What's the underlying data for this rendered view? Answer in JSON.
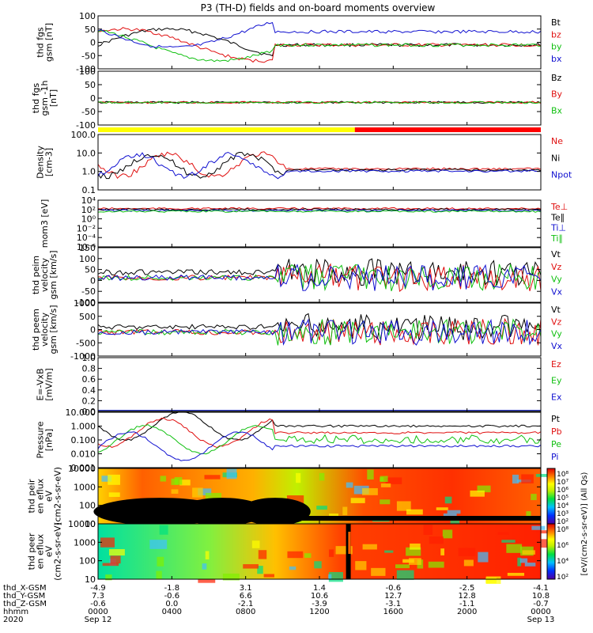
{
  "title": "P3 (TH-D) fields and on-board moments overview",
  "colors": {
    "black": "#000000",
    "red": "#e01010",
    "green": "#10c010",
    "blue": "#1010d0",
    "yellow": "#ffff00",
    "bar_red": "#ff0000"
  },
  "colorbar": {
    "label": "[eV/(cm2-s-sr-eV)] (All Qs)",
    "ticks_top": [
      "10⁸",
      "10⁷",
      "10⁶",
      "10⁵",
      "10⁴",
      "10³",
      "10²"
    ],
    "ticks_bottom": [
      "10⁸",
      "10⁶",
      "10⁴",
      "10²"
    ]
  },
  "footer": {
    "row_labels": [
      "thd_X-GSM",
      "thd_Y-GSM",
      "thd_Z-GSM",
      "hhmm",
      "2020"
    ],
    "columns": [
      {
        "x": "-4.9",
        "y": "7.3",
        "z": "-0.6",
        "t": "0000",
        "d": "Sep 12"
      },
      {
        "x": "-1.8",
        "y": "-0.6",
        "z": "0.0",
        "t": "0400",
        "d": ""
      },
      {
        "x": "3.1",
        "y": "6.6",
        "z": "-2.1",
        "t": "0800",
        "d": ""
      },
      {
        "x": "1.4",
        "y": "10.6",
        "z": "-3.9",
        "t": "1200",
        "d": ""
      },
      {
        "x": "-0.6",
        "y": "12.7",
        "z": "-3.1",
        "t": "1600",
        "d": ""
      },
      {
        "x": "-2.5",
        "y": "12.8",
        "z": "-1.1",
        "t": "2000",
        "d": ""
      },
      {
        "x": "-4.1",
        "y": "10.8",
        "z": "-0.7",
        "t": "0000",
        "d": "Sep 13"
      }
    ]
  },
  "chart_data": [
    {
      "type": "line",
      "ylabel": "thd fgs gsm [nT]",
      "ylim": [
        -100,
        100
      ],
      "yticks": [
        "100",
        "50",
        "0",
        "-50",
        "-100"
      ],
      "legend": [
        {
          "name": "Bt",
          "color": "black"
        },
        {
          "name": "bz",
          "color": "red"
        },
        {
          "name": "by",
          "color": "green"
        },
        {
          "name": "bx",
          "color": "blue"
        }
      ]
    },
    {
      "type": "line",
      "ylabel": "thd fgs gsm -1h [nT]",
      "ylim": [
        -120,
        100
      ],
      "yticks": [
        "100",
        "50",
        "0",
        "-50",
        "-100"
      ],
      "legend": [
        {
          "name": "Bz",
          "color": "black"
        },
        {
          "name": "By",
          "color": "red"
        },
        {
          "name": "Bx",
          "color": "green"
        }
      ]
    },
    {
      "type": "line",
      "ylabel": "Density [cm-3]",
      "scale": "log",
      "yticks": [
        "100.0",
        "10.0",
        "1.0",
        "0.1"
      ],
      "legend": [
        {
          "name": "Ne",
          "color": "red"
        },
        {
          "name": "Ni",
          "color": "black"
        },
        {
          "name": "Npot",
          "color": "blue"
        }
      ]
    },
    {
      "type": "line",
      "ylabel": "mom3 [eV]",
      "scale": "log",
      "yticks": [
        "10⁴",
        "10²",
        "10⁰",
        "10⁻²",
        "10⁻⁴",
        "10⁻⁶"
      ],
      "legend": [
        {
          "name": "Te⊥",
          "color": "red"
        },
        {
          "name": "Te∥",
          "color": "black"
        },
        {
          "name": "Ti⊥",
          "color": "blue"
        },
        {
          "name": "Ti∥",
          "color": "green"
        }
      ]
    },
    {
      "type": "line",
      "ylabel": "thd peim velocity gsm [km/s]",
      "ylim": [
        -100,
        150
      ],
      "yticks": [
        "150",
        "100",
        "50",
        "0",
        "-50",
        "-100"
      ],
      "legend": [
        {
          "name": "Vt",
          "color": "black"
        },
        {
          "name": "Vz",
          "color": "red"
        },
        {
          "name": "Vy",
          "color": "green"
        },
        {
          "name": "Vx",
          "color": "blue"
        }
      ]
    },
    {
      "type": "line",
      "ylabel": "thd peem velocity gsm [km/s]",
      "ylim": [
        -1000,
        1000
      ],
      "yticks": [
        "1000",
        "500",
        "0",
        "-500",
        "-1000"
      ],
      "legend": [
        {
          "name": "Vt",
          "color": "black"
        },
        {
          "name": "Vz",
          "color": "red"
        },
        {
          "name": "Vy",
          "color": "green"
        },
        {
          "name": "Vx",
          "color": "blue"
        }
      ]
    },
    {
      "type": "line",
      "ylabel": "E=-VxB [mV/m]",
      "ylim": [
        0,
        1.0
      ],
      "yticks": [
        "1.0",
        "0.8",
        "0.6",
        "0.4",
        "0.2",
        "0.0"
      ],
      "legend": [
        {
          "name": "Ez",
          "color": "red"
        },
        {
          "name": "Ey",
          "color": "green"
        },
        {
          "name": "Ex",
          "color": "blue"
        }
      ]
    },
    {
      "type": "line",
      "ylabel": "Pressure [nPa]",
      "scale": "log",
      "yticks": [
        "10.000",
        "1.000",
        "0.100",
        "0.010",
        "0.001"
      ],
      "legend": [
        {
          "name": "Pt",
          "color": "black"
        },
        {
          "name": "Pb",
          "color": "red"
        },
        {
          "name": "Pe",
          "color": "green"
        },
        {
          "name": "Pi",
          "color": "blue"
        }
      ]
    },
    {
      "type": "heatmap",
      "ylabel": "thd peir en eflux eV (cm2-s-sr-eV)",
      "scale": "log",
      "yticks": [
        "10000",
        "1000",
        "100",
        "10"
      ]
    },
    {
      "type": "heatmap",
      "ylabel": "thd peer en eflux eV (cm2-s-sr-eV)",
      "scale": "log",
      "yticks": [
        "10000",
        "1000",
        "100",
        "10"
      ]
    }
  ]
}
